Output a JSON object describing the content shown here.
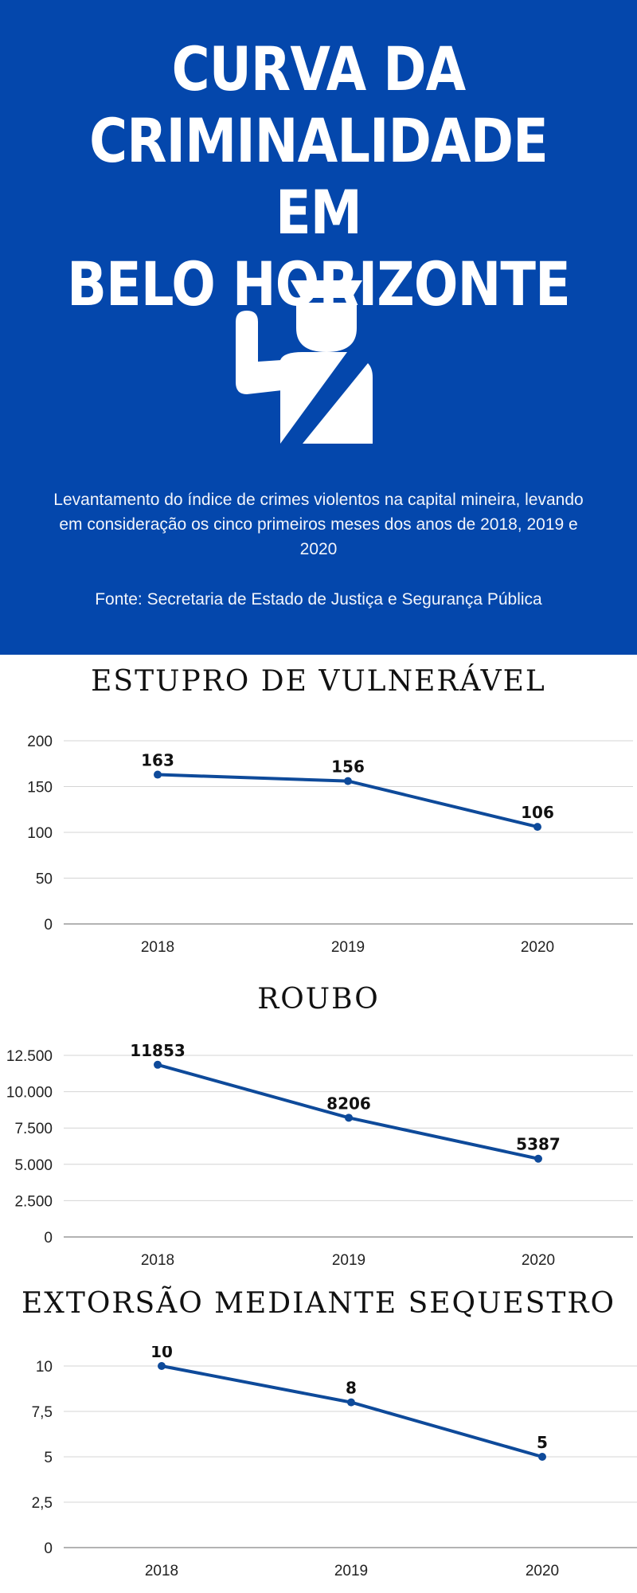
{
  "header": {
    "title_lines": [
      "CURVA DA",
      "CRIMINALIDADE EM",
      "BELO HORIZONTE"
    ],
    "icon": "traffic-police-officer-icon",
    "description": "Levantamento do índice de crimes violentos na capital mineira, levando em consideração os cinco primeiros meses dos anos de 2018, 2019 e 2020",
    "source": "Fonte: Secretaria de Estado de Justiça e Segurança Pública"
  },
  "colors": {
    "brand_blue": "#0447ac",
    "line": "#0e4a9a",
    "grid": "#d4d4d4",
    "axis": "#9a9a9a"
  },
  "chart_data": [
    {
      "type": "line",
      "title": "ESTUPRO DE VULNERÁVEL",
      "categories": [
        "2018",
        "2019",
        "2020"
      ],
      "series": [
        {
          "values": [
            163,
            156,
            106
          ]
        }
      ],
      "data_labels": [
        "163",
        "156",
        "106"
      ],
      "ylim": [
        0,
        200
      ],
      "yticks": [
        0,
        50,
        100,
        150,
        200
      ],
      "ytick_labels": [
        "0",
        "50",
        "100",
        "150",
        "200"
      ],
      "grid": true
    },
    {
      "type": "line",
      "title": "ROUBO",
      "categories": [
        "2018",
        "2019",
        "2020"
      ],
      "series": [
        {
          "values": [
            11853,
            8206,
            5387
          ]
        }
      ],
      "data_labels": [
        "11853",
        "8206",
        "5387"
      ],
      "ylim": [
        0,
        12500
      ],
      "yticks": [
        0,
        2500,
        5000,
        7500,
        10000,
        12500
      ],
      "ytick_labels": [
        "0",
        "2.500",
        "5.000",
        "7.500",
        "10.000",
        "12.500"
      ],
      "grid": true
    },
    {
      "type": "line",
      "title": "EXTORSÃO MEDIANTE SEQUESTRO",
      "categories": [
        "2018",
        "2019",
        "2020"
      ],
      "series": [
        {
          "values": [
            10,
            8,
            5
          ]
        }
      ],
      "data_labels": [
        "10",
        "8",
        "5"
      ],
      "ylim": [
        0,
        10
      ],
      "yticks": [
        0,
        2.5,
        5,
        7.5,
        10
      ],
      "ytick_labels": [
        "0",
        "2,5",
        "5",
        "7,5",
        "10"
      ],
      "grid": true
    }
  ]
}
